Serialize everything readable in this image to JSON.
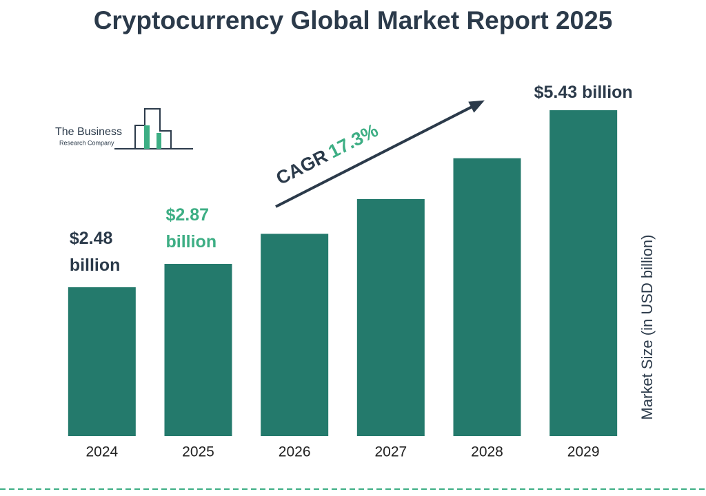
{
  "chart_data": {
    "type": "bar",
    "title": "Cryptocurrency Global Market Report 2025",
    "categories": [
      "2024",
      "2025",
      "2026",
      "2027",
      "2028",
      "2029"
    ],
    "values": [
      2.48,
      2.87,
      3.37,
      3.95,
      4.63,
      5.43
    ],
    "value_labels": [
      "$2.48 billion",
      "$2.87 billion",
      null,
      null,
      null,
      "$5.43 billion"
    ],
    "value_label_colors": [
      "#2b3a4a",
      "#3dae84",
      null,
      null,
      null,
      "#2b3a4a"
    ],
    "color": "#247a6c",
    "ylim": [
      0,
      5.43
    ],
    "y_axis_label": "Market Size (in USD billion)",
    "annotation": {
      "label": "CAGR",
      "value": "17.3%"
    },
    "logo": {
      "line1": "The Business",
      "line2": "Research Company"
    }
  }
}
